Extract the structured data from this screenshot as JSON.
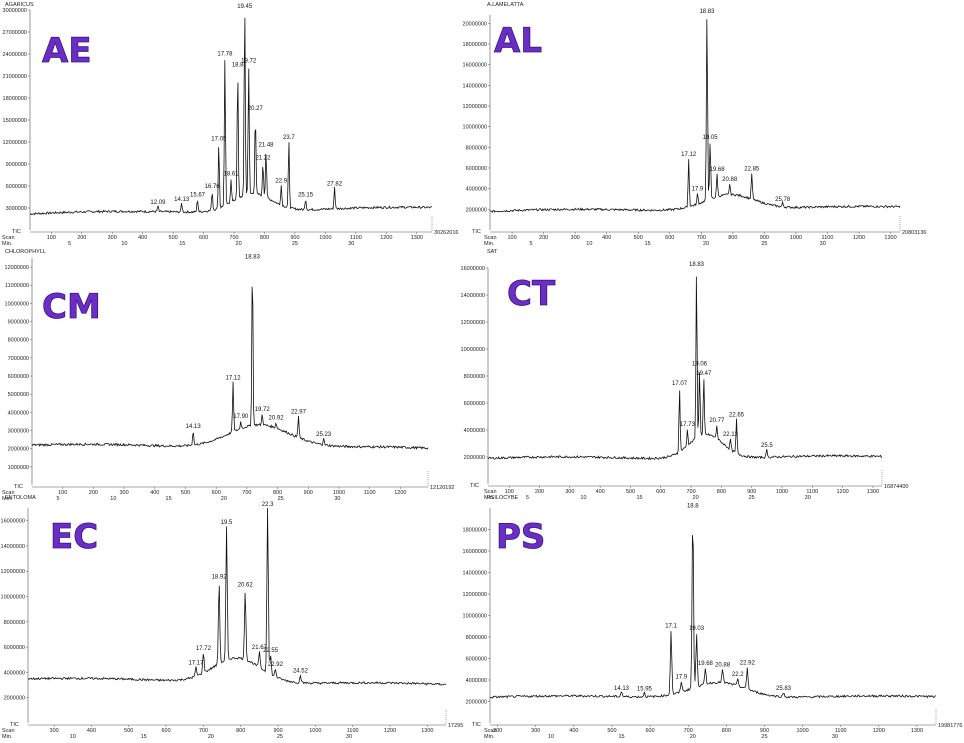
{
  "figure": {
    "colors": {
      "trace": "#111111",
      "label": "#6a2fc2"
    },
    "scan_label": "Scan",
    "min_label": "Min.",
    "tic_label": "TIC"
  },
  "chart_data": [
    {
      "type": "line",
      "big_label": "AE",
      "title": "AGARICUS",
      "x_unit": "Scan",
      "xlim": [
        30,
        1350
      ],
      "ylim": [
        0,
        30000000
      ],
      "yticks": [
        3000000,
        6000000,
        9000000,
        12000000,
        15000000,
        18000000,
        21000000,
        24000000,
        27000000,
        30000000
      ],
      "ytick_labels": [
        "3000000",
        "6000000",
        "9000000",
        "12000000",
        "15000000",
        "18000000",
        "21000000",
        "24000000",
        "27000000",
        "30000000"
      ],
      "xticks": [
        100,
        200,
        300,
        400,
        500,
        600,
        700,
        800,
        900,
        1000,
        1100,
        1200,
        1300
      ],
      "minutes": [
        {
          "label": "5",
          "x": 160
        },
        {
          "label": "10",
          "x": 340
        },
        {
          "label": "15",
          "x": 530
        },
        {
          "label": "20",
          "x": 715
        },
        {
          "label": "25",
          "x": 900
        },
        {
          "label": "30",
          "x": 1085
        }
      ],
      "baseline_start": 2200000,
      "baseline_end": 3000000,
      "hump": {
        "center": 760,
        "width": 90,
        "height": 2500000
      },
      "tic_value": "30262016",
      "peaks": [
        {
          "label": "12.09",
          "x": 450,
          "y": 800000
        },
        {
          "label": "14.13",
          "x": 528,
          "y": 1200000
        },
        {
          "label": "15.67",
          "x": 580,
          "y": 1700000
        },
        {
          "label": "16.76",
          "x": 628,
          "y": 2600000
        },
        {
          "label": "17.05",
          "x": 650,
          "y": 8800000
        },
        {
          "label": "17.78",
          "x": 670,
          "y": 20000000
        },
        {
          "label": "18.61",
          "x": 690,
          "y": 3200000
        },
        {
          "label": "18.8",
          "x": 712,
          "y": 17500000
        },
        {
          "label": "19.45",
          "x": 735,
          "y": 26000000
        },
        {
          "label": "19.72",
          "x": 748,
          "y": 17500000
        },
        {
          "label": "20.27",
          "x": 770,
          "y": 11000000
        },
        {
          "label": "21.22",
          "x": 795,
          "y": 4500000
        },
        {
          "label": "21.48",
          "x": 805,
          "y": 6500000
        },
        {
          "label": "22.9",
          "x": 855,
          "y": 2700000
        },
        {
          "label": "23.7",
          "x": 880,
          "y": 9000000
        },
        {
          "label": "25.15",
          "x": 935,
          "y": 1500000
        },
        {
          "label": "27.82",
          "x": 1030,
          "y": 3000000
        }
      ]
    },
    {
      "type": "line",
      "big_label": "AL",
      "title": "A.LAMELATTA",
      "x_unit": "Scan",
      "xlim": [
        30,
        1330
      ],
      "ylim": [
        0,
        20800000
      ],
      "yticks": [
        2000000,
        4000000,
        6000000,
        8000000,
        10000000,
        12000000,
        14000000,
        16000000,
        18000000,
        20000000
      ],
      "ytick_labels": [
        "2000000",
        "4000000",
        "6000000",
        "8000000",
        "10000000",
        "12000000",
        "14000000",
        "16000000",
        "18000000",
        "20000000"
      ],
      "xticks": [
        100,
        200,
        300,
        400,
        500,
        600,
        700,
        800,
        900,
        1000,
        1100,
        1200,
        1300
      ],
      "minutes": [
        {
          "label": "5",
          "x": 160
        },
        {
          "label": "10",
          "x": 345
        },
        {
          "label": "15",
          "x": 530
        },
        {
          "label": "20",
          "x": 715
        },
        {
          "label": "25",
          "x": 900
        },
        {
          "label": "30",
          "x": 1085
        }
      ],
      "baseline_start": 1800000,
      "baseline_end": 2200000,
      "hump": {
        "center": 790,
        "width": 110,
        "height": 1500000
      },
      "tic_value": "20803136",
      "peaks": [
        {
          "label": "17.12",
          "x": 660,
          "y": 4600000
        },
        {
          "label": "17.9",
          "x": 688,
          "y": 1000000
        },
        {
          "label": "18.83",
          "x": 718,
          "y": 18200000
        },
        {
          "label": "19.05",
          "x": 728,
          "y": 5500000
        },
        {
          "label": "19.68",
          "x": 750,
          "y": 2200000
        },
        {
          "label": "20.88",
          "x": 790,
          "y": 1000000
        },
        {
          "label": "22.85",
          "x": 860,
          "y": 2500000
        },
        {
          "label": "25.78",
          "x": 958,
          "y": 400000
        }
      ]
    },
    {
      "type": "line",
      "big_label": "CM",
      "title": "CHLOROPHYLL",
      "x_unit": "Scan",
      "xlim": [
        0,
        1290
      ],
      "ylim": [
        0,
        12500000
      ],
      "yticks": [
        1000000,
        2000000,
        3000000,
        4000000,
        5000000,
        6000000,
        7000000,
        8000000,
        9000000,
        10000000,
        11000000,
        12000000
      ],
      "ytick_labels": [
        "1000000",
        "2000000",
        "3000000",
        "4000000",
        "5000000",
        "6000000",
        "7000000",
        "8000000",
        "9000000",
        "10000000",
        "11000000",
        "12000000"
      ],
      "xticks": [
        100,
        200,
        300,
        400,
        500,
        600,
        700,
        800,
        900,
        1000,
        1100,
        1200
      ],
      "minutes": [
        {
          "label": "5",
          "x": 85
        },
        {
          "label": "10",
          "x": 265
        },
        {
          "label": "15",
          "x": 445
        },
        {
          "label": "20",
          "x": 625
        },
        {
          "label": "25",
          "x": 810
        },
        {
          "label": "30",
          "x": 995
        }
      ],
      "baseline_start": 2200000,
      "baseline_end": 2000000,
      "hump": {
        "center": 740,
        "width": 140,
        "height": 1300000
      },
      "tic_value": "12120192",
      "peaks": [
        {
          "label": "14.13",
          "x": 525,
          "y": 800000
        },
        {
          "label": "17.12",
          "x": 655,
          "y": 2700000
        },
        {
          "label": "17.90",
          "x": 680,
          "y": 400000
        },
        {
          "label": "18.83",
          "x": 718,
          "y": 9000000
        },
        {
          "label": "19.72",
          "x": 750,
          "y": 600000
        },
        {
          "label": "20.92",
          "x": 795,
          "y": 300000
        },
        {
          "label": "22.97",
          "x": 868,
          "y": 1200000
        },
        {
          "label": "25.23",
          "x": 950,
          "y": 400000
        }
      ]
    },
    {
      "type": "line",
      "big_label": "CT",
      "title": "SAT",
      "x_unit": "Scan",
      "xlim": [
        30,
        1330
      ],
      "ylim": [
        0,
        16000000
      ],
      "yticks": [
        2000000,
        4000000,
        6000000,
        8000000,
        10000000,
        12000000,
        14000000,
        16000000
      ],
      "ytick_labels": [
        "2000000",
        "4000000",
        "6000000",
        "8000000",
        "10000000",
        "12000000",
        "14000000",
        "16000000"
      ],
      "xticks": [
        100,
        200,
        300,
        400,
        500,
        600,
        700,
        800,
        900,
        1000,
        1100,
        1200,
        1300
      ],
      "minutes": [
        {
          "label": "5",
          "x": 160
        },
        {
          "label": "10",
          "x": 345
        },
        {
          "label": "15",
          "x": 530
        },
        {
          "label": "20",
          "x": 715
        },
        {
          "label": "25",
          "x": 900
        },
        {
          "label": "30",
          "x": 1085
        }
      ],
      "baseline_start": 1900000,
      "baseline_end": 2000000,
      "hump": {
        "center": 750,
        "width": 80,
        "height": 1800000
      },
      "tic_value": "16874400",
      "peaks": [
        {
          "label": "17.07",
          "x": 662,
          "y": 4700000
        },
        {
          "label": "17.73",
          "x": 688,
          "y": 1200000
        },
        {
          "label": "18.83",
          "x": 718,
          "y": 12500000
        },
        {
          "label": "19.06",
          "x": 728,
          "y": 5000000
        },
        {
          "label": "19.47",
          "x": 742,
          "y": 4200000
        },
        {
          "label": "20.77",
          "x": 785,
          "y": 1000000
        },
        {
          "label": "22.13",
          "x": 830,
          "y": 800000
        },
        {
          "label": "22.65",
          "x": 850,
          "y": 2500000
        },
        {
          "label": "25.5",
          "x": 950,
          "y": 600000
        }
      ]
    },
    {
      "type": "line",
      "big_label": "EC",
      "title": "ENTOLOMA",
      "x_unit": "Scan",
      "xlim": [
        230,
        1350
      ],
      "ylim": [
        0,
        17000000
      ],
      "yticks": [
        2000000,
        4000000,
        6000000,
        8000000,
        10000000,
        12000000,
        14000000,
        16000000
      ],
      "ytick_labels": [
        "2000000",
        "4000000",
        "6000000",
        "8000000",
        "10000000",
        "12000000",
        "14000000",
        "16000000"
      ],
      "xticks": [
        300,
        400,
        500,
        600,
        700,
        800,
        900,
        1000,
        1100,
        1200,
        1300
      ],
      "minutes": [
        {
          "label": "10",
          "x": 350
        },
        {
          "label": "15",
          "x": 540
        },
        {
          "label": "20",
          "x": 720
        },
        {
          "label": "25",
          "x": 905
        },
        {
          "label": "30",
          "x": 1090
        }
      ],
      "baseline_start": 3500000,
      "baseline_end": 3000000,
      "hump": {
        "center": 790,
        "width": 90,
        "height": 2000000
      },
      "tic_value": "17295",
      "peaks": [
        {
          "label": "17.17",
          "x": 680,
          "y": 700000
        },
        {
          "label": "17.72",
          "x": 700,
          "y": 1600000
        },
        {
          "label": "18.92",
          "x": 742,
          "y": 6500000
        },
        {
          "label": "19.5",
          "x": 762,
          "y": 10500000
        },
        {
          "label": "20.62",
          "x": 812,
          "y": 5500000
        },
        {
          "label": "21.67",
          "x": 850,
          "y": 1200000
        },
        {
          "label": "22.3",
          "x": 872,
          "y": 13500000
        },
        {
          "label": "22.55",
          "x": 880,
          "y": 1500000
        },
        {
          "label": "22.92",
          "x": 893,
          "y": 600000
        },
        {
          "label": "24.52",
          "x": 960,
          "y": 600000
        }
      ]
    },
    {
      "type": "line",
      "big_label": "PS",
      "title": "PSILOCYBE",
      "x_unit": "Scan",
      "xlim": [
        180,
        1350
      ],
      "ylim": [
        0,
        20000000
      ],
      "yticks": [
        2000000,
        4000000,
        6000000,
        8000000,
        10000000,
        12000000,
        14000000,
        16000000,
        18000000
      ],
      "ytick_labels": [
        "2000000",
        "4000000",
        "6000000",
        "8000000",
        "10000000",
        "12000000",
        "14000000",
        "16000000",
        "18000000"
      ],
      "xticks": [
        200,
        300,
        400,
        500,
        600,
        700,
        800,
        900,
        1000,
        1100,
        1200,
        1300
      ],
      "minutes": [
        {
          "label": "10",
          "x": 340
        },
        {
          "label": "15",
          "x": 525
        },
        {
          "label": "20",
          "x": 712
        },
        {
          "label": "25",
          "x": 900
        },
        {
          "label": "30",
          "x": 1085
        }
      ],
      "baseline_start": 2400000,
      "baseline_end": 2400000,
      "hump": {
        "center": 780,
        "width": 100,
        "height": 1500000
      },
      "tic_value": "19981776",
      "peaks": [
        {
          "label": "14.13",
          "x": 525,
          "y": 500000
        },
        {
          "label": "15.95",
          "x": 585,
          "y": 400000
        },
        {
          "label": "17.1",
          "x": 655,
          "y": 6000000
        },
        {
          "label": "17.9",
          "x": 682,
          "y": 1000000
        },
        {
          "label": "18.8",
          "x": 712,
          "y": 16500000
        },
        {
          "label": "19.03",
          "x": 722,
          "y": 5000000
        },
        {
          "label": "19.68",
          "x": 745,
          "y": 1500000
        },
        {
          "label": "20.88",
          "x": 790,
          "y": 1200000
        },
        {
          "label": "22.2",
          "x": 830,
          "y": 600000
        },
        {
          "label": "22.92",
          "x": 855,
          "y": 2000000
        },
        {
          "label": "25.83",
          "x": 950,
          "y": 400000
        }
      ]
    }
  ]
}
